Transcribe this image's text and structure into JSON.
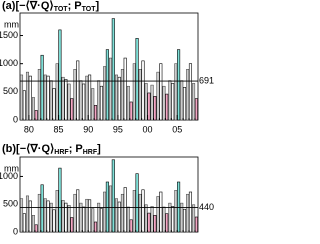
{
  "chart_data": [
    {
      "type": "bar",
      "title_parts": [
        "(a)[−⟨∇·Q⟩",
        "TOT",
        "; P",
        "TOT",
        "]"
      ],
      "ylabel": "mm",
      "categories": [
        null,
        "80",
        null,
        null,
        null,
        null,
        "85",
        null,
        null,
        null,
        null,
        "90",
        null,
        null,
        null,
        null,
        "95",
        null,
        null,
        null,
        null,
        "00",
        null,
        null,
        null,
        null,
        "05",
        null,
        null,
        null
      ],
      "ylim": [
        0,
        1900
      ],
      "yticks": [
        0,
        500,
        1000,
        1500
      ],
      "hline": 691,
      "series": [
        {
          "colors": [
            "#ffffff",
            "#ffffff",
            "#f4a6c4",
            "#7fe0d8",
            "#ffffff",
            "#ffffff",
            "#7fe0d8",
            "#ffffff",
            "#f4a6c4",
            "#ffffff",
            "#ffffff",
            "#ffffff",
            "#f4a6c4",
            "#ffffff",
            "#7fe0d8",
            "#7fe0d8",
            "#ffffff",
            "#ffffff",
            "#f4a6c4",
            "#7fe0d8",
            "#ffffff",
            "#f4a6c4",
            "#f4a6c4",
            "#ffffff",
            "#f4a6c4",
            "#ffffff",
            "#7fe0d8",
            "#ffffff",
            "#ffffff",
            "#f4a6c4"
          ],
          "values": [
            520,
            780,
            170,
            1150,
            780,
            560,
            1600,
            720,
            380,
            1050,
            640,
            800,
            260,
            600,
            1250,
            1800,
            760,
            1100,
            320,
            1450,
            1050,
            480,
            420,
            1000,
            460,
            650,
            1250,
            580,
            1000,
            380
          ]
        },
        {
          "color": "#cccccc",
          "values": [
            800,
            850,
            400,
            900,
            800,
            700,
            1000,
            760,
            640,
            900,
            700,
            780,
            560,
            700,
            950,
            1100,
            800,
            900,
            600,
            1000,
            900,
            650,
            620,
            850,
            600,
            700,
            1000,
            700,
            900,
            650
          ]
        }
      ]
    },
    {
      "type": "bar",
      "title_parts": [
        "(b)[−⟨∇·Q⟩",
        "HRF",
        "; P",
        "HRF",
        "]"
      ],
      "ylabel": "mm",
      "categories": [
        null,
        null,
        null,
        null,
        null,
        null,
        null,
        null,
        null,
        null,
        null,
        null,
        null,
        null,
        null,
        null,
        null,
        null,
        null,
        null,
        null,
        null,
        null,
        null,
        null,
        null,
        null,
        null,
        null,
        null
      ],
      "ylim": [
        0,
        1350
      ],
      "yticks": [
        0,
        500,
        1000
      ],
      "hline": 440,
      "series": [
        {
          "colors": [
            "#ffffff",
            "#ffffff",
            "#f4a6c4",
            "#7fe0d8",
            "#ffffff",
            "#ffffff",
            "#7fe0d8",
            "#ffffff",
            "#f4a6c4",
            "#ffffff",
            "#ffffff",
            "#ffffff",
            "#f4a6c4",
            "#ffffff",
            "#7fe0d8",
            "#7fe0d8",
            "#ffffff",
            "#ffffff",
            "#f4a6c4",
            "#7fe0d8",
            "#ffffff",
            "#f4a6c4",
            "#f4a6c4",
            "#ffffff",
            "#f4a6c4",
            "#ffffff",
            "#7fe0d8",
            "#ffffff",
            "#ffffff",
            "#f4a6c4"
          ],
          "values": [
            330,
            560,
            130,
            850,
            560,
            400,
            1150,
            520,
            260,
            760,
            450,
            580,
            180,
            420,
            900,
            1300,
            540,
            800,
            220,
            1050,
            760,
            340,
            300,
            720,
            330,
            460,
            900,
            410,
            720,
            270
          ]
        },
        {
          "color": "#cccccc",
          "values": [
            600,
            650,
            300,
            680,
            600,
            520,
            750,
            570,
            480,
            680,
            520,
            590,
            420,
            520,
            720,
            830,
            600,
            680,
            450,
            750,
            680,
            490,
            460,
            640,
            450,
            520,
            750,
            520,
            680,
            490
          ]
        }
      ]
    }
  ]
}
